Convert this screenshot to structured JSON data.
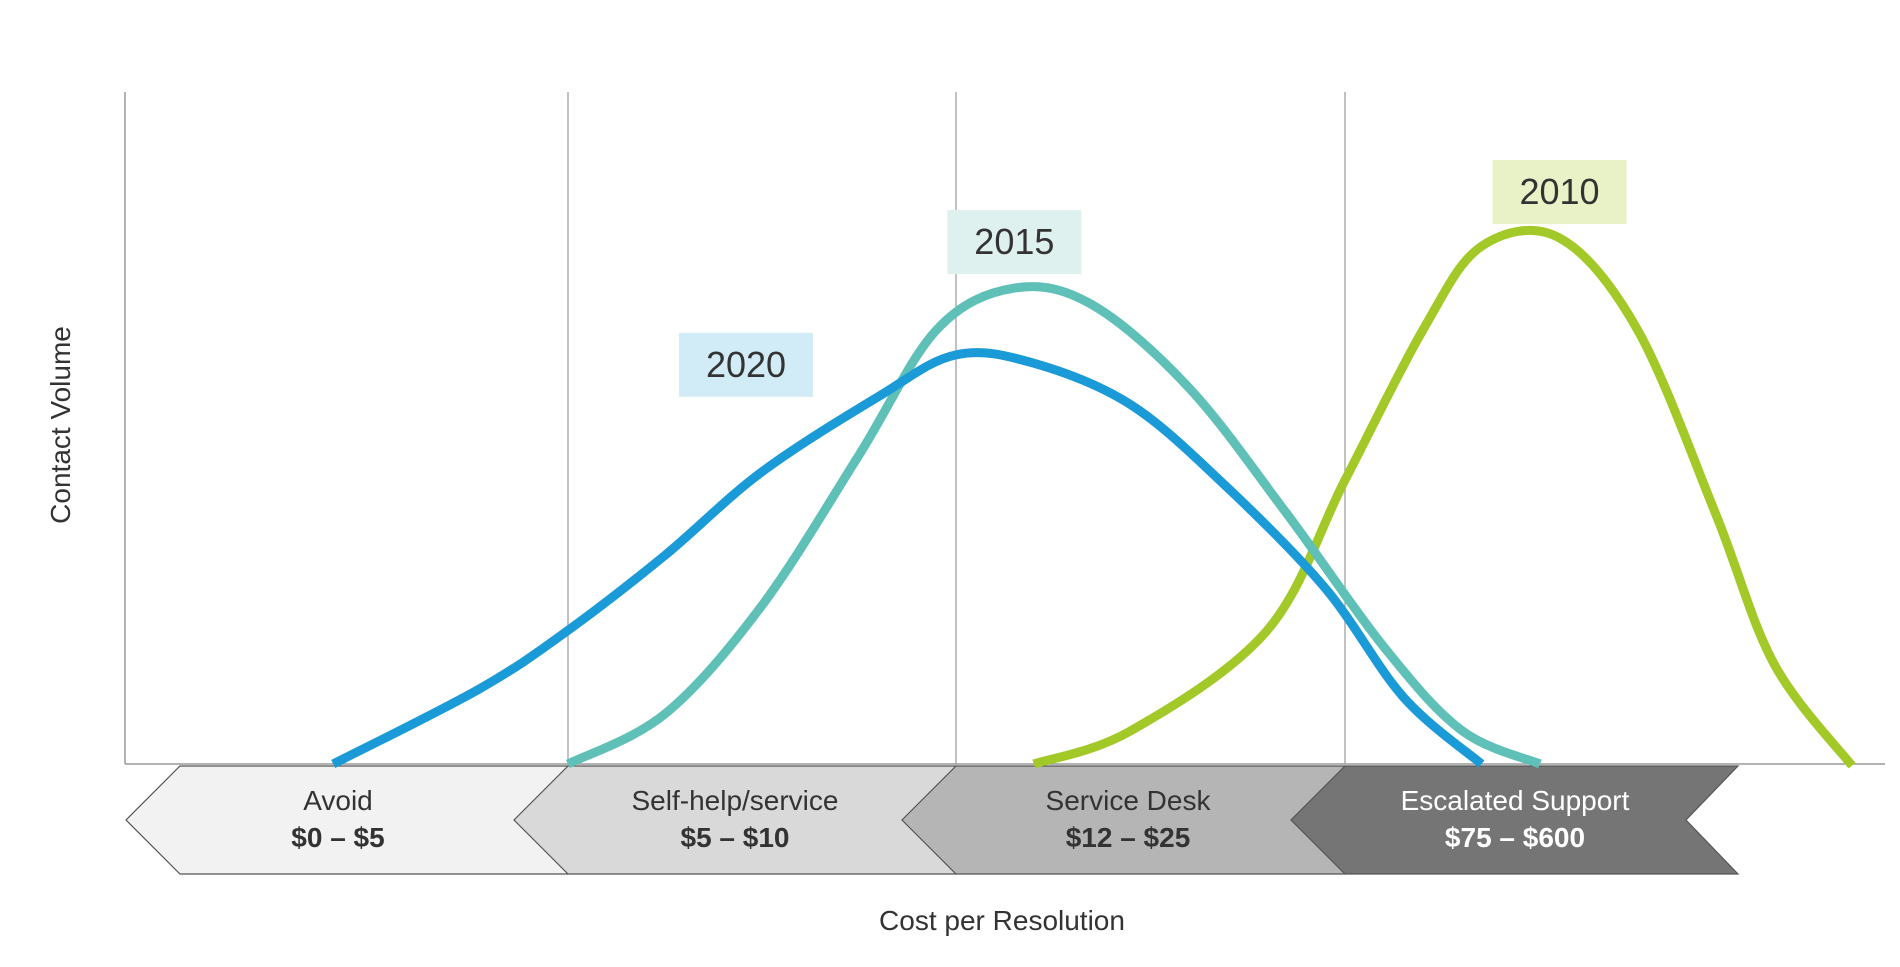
{
  "chart_data": {
    "type": "line",
    "title": "",
    "xlabel": "Cost per Resolution",
    "ylabel": "Contact Volume",
    "y_tick_labels": false,
    "grid": "vertical separators between cost tiers",
    "categories": [
      {
        "name": "Avoid",
        "range": "$0 – $5"
      },
      {
        "name": "Self-help/service",
        "range": "$5 – $10"
      },
      {
        "name": "Service Desk",
        "range": "$12 – $25"
      },
      {
        "name": "Escalated Support",
        "range": "$75 – $600"
      }
    ],
    "series": [
      {
        "name": "2010",
        "color": "#a3c928",
        "label_bg": "#e9f2c7",
        "points": [
          [
            2.2,
            0
          ],
          [
            2.45,
            4
          ],
          [
            2.8,
            16
          ],
          [
            3.0,
            34
          ],
          [
            3.2,
            52
          ],
          [
            3.35,
            62
          ],
          [
            3.55,
            63
          ],
          [
            3.75,
            52
          ],
          [
            3.95,
            30
          ],
          [
            4.1,
            12
          ],
          [
            4.3,
            -0.2
          ]
        ]
      },
      {
        "name": "2015",
        "color": "#5fc0b8",
        "label_bg": "#dff1ef",
        "points": [
          [
            1.0,
            0
          ],
          [
            1.25,
            6
          ],
          [
            1.5,
            19
          ],
          [
            1.75,
            37
          ],
          [
            1.95,
            52
          ],
          [
            2.15,
            57
          ],
          [
            2.35,
            55
          ],
          [
            2.6,
            45
          ],
          [
            2.85,
            30
          ],
          [
            3.1,
            14
          ],
          [
            3.3,
            4
          ],
          [
            3.5,
            0
          ]
        ]
      },
      {
        "name": "2020",
        "color": "#1a9ad7",
        "label_bg": "#d1ebf7",
        "points": [
          [
            0.47,
            0
          ],
          [
            0.8,
            9
          ],
          [
            1.0,
            16
          ],
          [
            1.25,
            25
          ],
          [
            1.5,
            35
          ],
          [
            1.8,
            44
          ],
          [
            2.0,
            49
          ],
          [
            2.2,
            48
          ],
          [
            2.45,
            43
          ],
          [
            2.7,
            33
          ],
          [
            2.95,
            21
          ],
          [
            3.15,
            8
          ],
          [
            3.35,
            0
          ]
        ]
      }
    ],
    "tier_colors": [
      "#f2f2f2",
      "#d9d9d9",
      "#b5b5b5",
      "#757575"
    ],
    "tier_text_colors": [
      "#333333",
      "#333333",
      "#333333",
      "#ffffff"
    ]
  }
}
